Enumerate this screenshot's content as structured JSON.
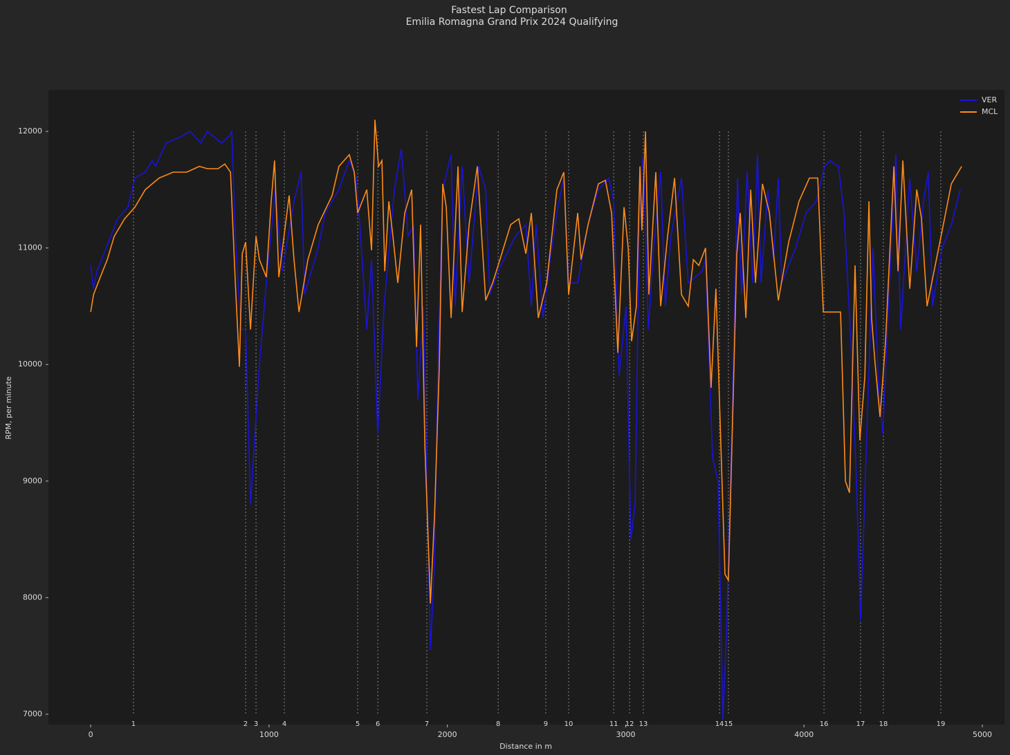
{
  "chart_data": {
    "type": "line",
    "title": "Fastest Lap Comparison",
    "subtitle": "Emilia Romagna Grand Prix 2024 Qualifying",
    "x_label": "Distance in m",
    "y_label": "RPM, per minute",
    "xlim": [
      -237,
      5124
    ],
    "ylim": [
      6911,
      12356
    ],
    "xticks": [
      0,
      1000,
      2000,
      3000,
      4000,
      5000
    ],
    "yticks": [
      7000,
      8000,
      9000,
      10000,
      11000,
      12000
    ],
    "grid": false,
    "legend": "upper right",
    "corner_numbers": [
      1,
      2,
      3,
      4,
      5,
      6,
      7,
      8,
      9,
      10,
      11,
      12,
      13,
      14,
      15,
      16,
      17,
      18,
      19
    ],
    "corner_distances": [
      240,
      869,
      927,
      1086,
      1497,
      1610,
      1885,
      2285,
      2552,
      2680,
      2933,
      3022,
      3099,
      3526,
      3576,
      4112,
      4317,
      4445,
      4767
    ],
    "series": [
      {
        "name": "VER",
        "color": "#1a14d8",
        "x": [
          0,
          16,
          35,
          74,
          112,
          151,
          209,
          248,
          306,
          345,
          364,
          423,
          500,
          559,
          617,
          655,
          733,
          772,
          791,
          811,
          842,
          869,
          896,
          946,
          985,
          1035,
          1075,
          1140,
          1180,
          1200,
          1276,
          1315,
          1392,
          1450,
          1490,
          1509,
          1548,
          1575,
          1610,
          1645,
          1703,
          1742,
          1780,
          1811,
          1835,
          1866,
          1905,
          1928,
          1947,
          1974,
          2021,
          2044,
          2083,
          2122,
          2176,
          2215,
          2238,
          2285,
          2382,
          2440,
          2471,
          2498,
          2537,
          2576,
          2614,
          2653,
          2680,
          2731,
          2789,
          2847,
          2905,
          2933,
          2963,
          3002,
          3029,
          3053,
          3080,
          3099,
          3127,
          3157,
          3196,
          3223,
          3254,
          3313,
          3351,
          3429,
          3448,
          3487,
          3518,
          3545,
          3565,
          3596,
          3627,
          3650,
          3681,
          3712,
          3739,
          3759,
          3797,
          3829,
          3856,
          3875,
          3953,
          4011,
          4069,
          4116,
          4147,
          4193,
          4224,
          4263,
          4294,
          4317,
          4341,
          4387,
          4418,
          4442,
          4473,
          4515,
          4542,
          4593,
          4632,
          4670,
          4697,
          4721,
          4775,
          4826,
          4876
        ],
        "values": [
          10850,
          10650,
          10800,
          10950,
          11100,
          11250,
          11350,
          11600,
          11650,
          11750,
          11700,
          11900,
          11950,
          12000,
          11900,
          12000,
          11900,
          11950,
          12000,
          11100,
          10300,
          10300,
          8800,
          10000,
          10700,
          11500,
          10800,
          11400,
          11650,
          10600,
          11000,
          11300,
          11500,
          11750,
          11600,
          11200,
          10300,
          10900,
          9400,
          10500,
          11500,
          11850,
          11100,
          11200,
          9700,
          10500,
          7550,
          8300,
          10000,
          11500,
          11800,
          10500,
          11700,
          10700,
          11700,
          11500,
          10600,
          10800,
          11100,
          11200,
          10500,
          11200,
          10400,
          10900,
          11300,
          11600,
          10700,
          10700,
          11200,
          11500,
          11600,
          11400,
          9900,
          10500,
          8500,
          8800,
          11500,
          11800,
          10300,
          11000,
          11650,
          10500,
          11100,
          11600,
          10700,
          10800,
          10900,
          9200,
          9000,
          6950,
          7700,
          9500,
          11600,
          10600,
          11650,
          10700,
          11800,
          10700,
          11500,
          10900,
          11600,
          10700,
          11000,
          11300,
          11400,
          11700,
          11750,
          11700,
          11300,
          10200,
          9000,
          7800,
          8900,
          11000,
          9800,
          9400,
          10500,
          11800,
          10300,
          11600,
          10800,
          11400,
          11650,
          10500,
          11000,
          11200,
          11500
        ]
      },
      {
        "name": "MCL",
        "color": "#ff8c1a",
        "x": [
          0,
          16,
          54,
          93,
          132,
          190,
          248,
          306,
          384,
          462,
          539,
          609,
          655,
          714,
          752,
          784,
          811,
          834,
          850,
          869,
          896,
          927,
          946,
          985,
          1012,
          1031,
          1055,
          1113,
          1140,
          1168,
          1218,
          1276,
          1354,
          1392,
          1450,
          1478,
          1497,
          1548,
          1575,
          1594,
          1614,
          1633,
          1649,
          1672,
          1695,
          1722,
          1761,
          1800,
          1827,
          1850,
          1874,
          1905,
          1928,
          1955,
          1974,
          1994,
          2021,
          2060,
          2083,
          2122,
          2168,
          2215,
          2254,
          2285,
          2355,
          2401,
          2440,
          2471,
          2510,
          2557,
          2614,
          2653,
          2680,
          2731,
          2750,
          2789,
          2847,
          2886,
          2921,
          2956,
          2991,
          3014,
          3033,
          3060,
          3080,
          3091,
          3111,
          3130,
          3169,
          3196,
          3235,
          3274,
          3313,
          3351,
          3379,
          3410,
          3448,
          3479,
          3506,
          3534,
          3557,
          3576,
          3604,
          3623,
          3642,
          3674,
          3701,
          3728,
          3767,
          3806,
          3856,
          3914,
          3972,
          4030,
          4077,
          4108,
          4139,
          4205,
          4232,
          4255,
          4286,
          4313,
          4341,
          4364,
          4379,
          4399,
          4426,
          4457,
          4504,
          4527,
          4554,
          4593,
          4632,
          4659,
          4690,
          4729,
          4775,
          4826,
          4884
        ],
        "values": [
          10450,
          10600,
          10750,
          10900,
          11100,
          11250,
          11350,
          11500,
          11600,
          11650,
          11650,
          11700,
          11680,
          11680,
          11720,
          11650,
          10700,
          9980,
          10950,
          11050,
          10300,
          11100,
          10900,
          10750,
          11400,
          11750,
          10750,
          11450,
          10900,
          10450,
          10900,
          11200,
          11450,
          11700,
          11800,
          11650,
          11300,
          11500,
          10980,
          12100,
          11700,
          11750,
          10800,
          11400,
          11100,
          10700,
          11300,
          11500,
          10150,
          11200,
          9300,
          7950,
          8700,
          10000,
          11550,
          11350,
          10400,
          11700,
          10450,
          11200,
          11700,
          10550,
          10700,
          10850,
          11200,
          11250,
          10950,
          11300,
          10400,
          10700,
          11500,
          11650,
          10600,
          11300,
          10900,
          11200,
          11550,
          11580,
          11300,
          10100,
          11350,
          11000,
          10200,
          10500,
          11700,
          11150,
          12000,
          10600,
          11650,
          10500,
          11100,
          11600,
          10600,
          10500,
          10900,
          10850,
          11000,
          9800,
          10650,
          9300,
          8200,
          8150,
          9800,
          10950,
          11300,
          10400,
          11500,
          10700,
          11550,
          11300,
          10550,
          11050,
          11400,
          11600,
          11600,
          10450,
          10450,
          10450,
          9000,
          8900,
          10850,
          9350,
          9900,
          11400,
          10400,
          10000,
          9550,
          10200,
          11700,
          10800,
          11750,
          10650,
          11500,
          11250,
          10500,
          10800,
          11150,
          11550,
          11700
        ]
      }
    ]
  }
}
